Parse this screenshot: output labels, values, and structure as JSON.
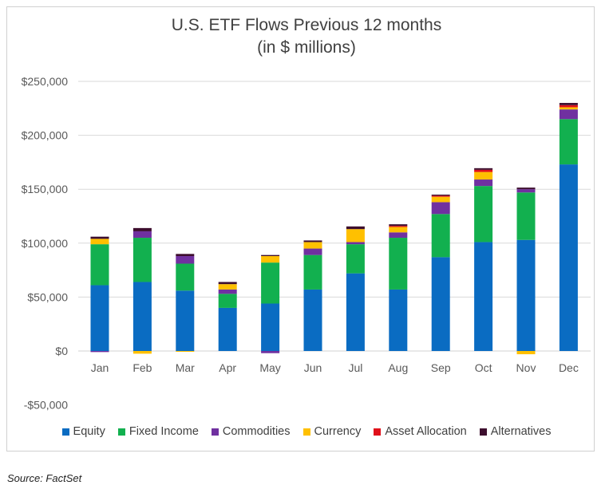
{
  "chart_data": {
    "type": "bar",
    "stacked": true,
    "title": "U.S. ETF Flows Previous 12 months",
    "subtitle": "(in $ millions)",
    "xlabel": "",
    "ylabel": "",
    "ylim": [
      -50000,
      250000
    ],
    "yticks": [
      -50000,
      0,
      50000,
      100000,
      150000,
      200000,
      250000
    ],
    "ytick_labels": [
      "-$50,000",
      "$0",
      "$50,000",
      "$100,000",
      "$150,000",
      "$200,000",
      "$250,000"
    ],
    "grid": true,
    "legend_position": "bottom",
    "categories": [
      "Jan",
      "Feb",
      "Mar",
      "Apr",
      "May",
      "Jun",
      "Jul",
      "Aug",
      "Sep",
      "Oct",
      "Nov",
      "Dec"
    ],
    "series": [
      {
        "name": "Equity",
        "color": "#0A6CC2",
        "values": [
          61000,
          64000,
          56000,
          40000,
          44000,
          57000,
          72000,
          57000,
          87000,
          101000,
          103000,
          173000
        ]
      },
      {
        "name": "Fixed Income",
        "color": "#12B04F",
        "values": [
          38000,
          41000,
          25000,
          13000,
          38000,
          32000,
          27000,
          48000,
          40000,
          52000,
          44000,
          42000
        ]
      },
      {
        "name": "Commodities",
        "color": "#7030A0",
        "values": [
          -1000,
          6000,
          7000,
          4000,
          -2000,
          6000,
          2000,
          5000,
          11000,
          6000,
          3000,
          9000
        ]
      },
      {
        "name": "Currency",
        "color": "#FFC000",
        "values": [
          5000,
          -2500,
          -500,
          5000,
          6000,
          6000,
          12000,
          5000,
          5000,
          7000,
          -3000,
          2000
        ]
      },
      {
        "name": "Asset Allocation",
        "color": "#E0101A",
        "values": [
          0,
          0,
          0,
          0,
          0,
          0,
          0,
          1000,
          1000,
          2000,
          0,
          2000
        ]
      },
      {
        "name": "Alternatives",
        "color": "#3D0E2E",
        "values": [
          2000,
          3000,
          2000,
          2000,
          1000,
          1500,
          2500,
          1500,
          1000,
          1500,
          1500,
          2000
        ]
      }
    ]
  },
  "source": "Source: FactSet"
}
